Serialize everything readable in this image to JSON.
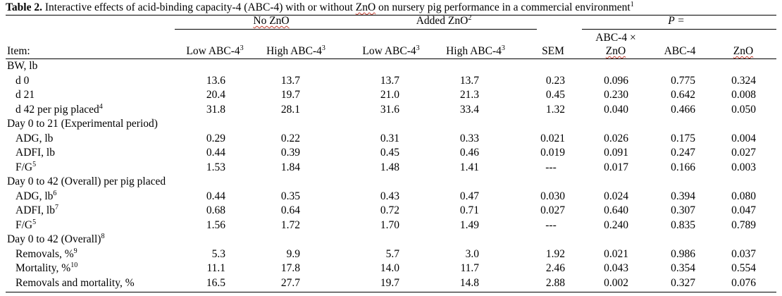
{
  "title": {
    "label": "Table 2.",
    "text_before_zno": " Interactive effects of acid-binding capacity-4 (ABC-4) with or without ",
    "zno": "ZnO",
    "text_after_zno": " on nursery pig performance in a commercial environment",
    "footnote": "1"
  },
  "groups": {
    "no_zno": "No ZnO",
    "added_zno": "Added ZnO",
    "added_zno_sup": "2",
    "p_header": "P ="
  },
  "columns": {
    "item": "Item:",
    "low_abc": "Low ABC-4",
    "high_abc": "High ABC-4",
    "abc_sup": "3",
    "sem": "SEM",
    "interaction_line1": "ABC-4 ×",
    "interaction_line2": "ZnO",
    "abc4": "ABC-4",
    "zno": "ZnO"
  },
  "rows": [
    {
      "label": "BW, lb",
      "sup": "",
      "indent": false,
      "values": []
    },
    {
      "label": "d 0",
      "sup": "",
      "indent": true,
      "values": [
        "13.6",
        "13.7",
        "13.7",
        "13.7",
        "0.23",
        "0.096",
        "0.775",
        "0.324"
      ]
    },
    {
      "label": "d 21",
      "sup": "",
      "indent": true,
      "values": [
        "20.4",
        "19.7",
        "21.0",
        "21.3",
        "0.45",
        "0.230",
        "0.642",
        "0.008"
      ]
    },
    {
      "label": "d 42 per pig placed",
      "sup": "4",
      "indent": true,
      "values": [
        "31.8",
        "28.1",
        "31.6",
        "33.4",
        "1.32",
        "0.040",
        "0.466",
        "0.050"
      ]
    },
    {
      "label": "Day 0 to 21 (Experimental period)",
      "sup": "",
      "indent": false,
      "values": []
    },
    {
      "label": "ADG, lb",
      "sup": "",
      "indent": true,
      "values": [
        "0.29",
        "0.22",
        "0.31",
        "0.33",
        "0.021",
        "0.026",
        "0.175",
        "0.004"
      ]
    },
    {
      "label": "ADFI, lb",
      "sup": "",
      "indent": true,
      "values": [
        "0.44",
        "0.39",
        "0.45",
        "0.46",
        "0.019",
        "0.091",
        "0.247",
        "0.027"
      ]
    },
    {
      "label": "F/G",
      "sup": "5",
      "indent": true,
      "values": [
        "1.53",
        "1.84",
        "1.48",
        "1.41",
        "---",
        "0.017",
        "0.166",
        "0.003"
      ]
    },
    {
      "label": "Day 0 to 42 (Overall) per pig placed",
      "sup": "",
      "indent": false,
      "values": []
    },
    {
      "label": "ADG, lb",
      "sup": "6",
      "indent": true,
      "values": [
        "0.44",
        "0.35",
        "0.43",
        "0.47",
        "0.030",
        "0.024",
        "0.394",
        "0.080"
      ]
    },
    {
      "label": "ADFI, lb",
      "sup": "7",
      "indent": true,
      "values": [
        "0.68",
        "0.64",
        "0.72",
        "0.71",
        "0.027",
        "0.640",
        "0.307",
        "0.047"
      ]
    },
    {
      "label": "F/G",
      "sup": "5",
      "indent": true,
      "values": [
        "1.56",
        "1.72",
        "1.70",
        "1.49",
        "---",
        "0.240",
        "0.835",
        "0.789"
      ]
    },
    {
      "label": "Day 0 to 42 (Overall)",
      "sup": "8",
      "indent": false,
      "values": []
    },
    {
      "label": "Removals, %",
      "sup": "9",
      "indent": true,
      "values": [
        "5.3",
        "9.9",
        "5.7",
        "3.0",
        "1.92",
        "0.021",
        "0.986",
        "0.037"
      ]
    },
    {
      "label": "Mortality, %",
      "sup": "10",
      "indent": true,
      "values": [
        "11.1",
        "17.8",
        "14.0",
        "11.7",
        "2.46",
        "0.043",
        "0.354",
        "0.554"
      ]
    },
    {
      "label": "Removals and mortality, %",
      "sup": "",
      "indent": true,
      "values": [
        "16.5",
        "27.7",
        "19.7",
        "14.8",
        "2.88",
        "0.002",
        "0.327",
        "0.076"
      ]
    }
  ]
}
